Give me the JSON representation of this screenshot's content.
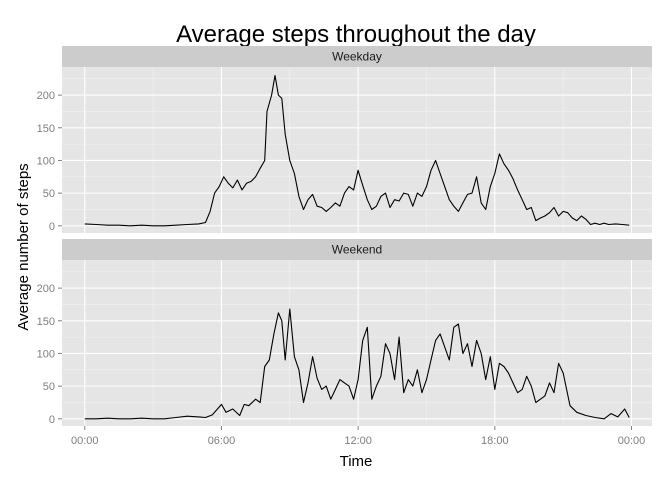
{
  "chart_data": {
    "type": "line",
    "title": "Average steps throughout the day",
    "xlabel": "Time",
    "ylabel": "Average number of steps",
    "x_unit": "hours",
    "xlim": [
      -1,
      24.9
    ],
    "ylim": [
      -11,
      243
    ],
    "x_ticks": [
      {
        "value": 0,
        "label": "00:00"
      },
      {
        "value": 6,
        "label": "06:00"
      },
      {
        "value": 12,
        "label": "12:00"
      },
      {
        "value": 18,
        "label": "18:00"
      },
      {
        "value": 24,
        "label": "00:00"
      }
    ],
    "y_ticks": [
      0,
      50,
      100,
      150,
      200
    ],
    "grid": true,
    "background_color": "#e5e5e5",
    "strip_color": "#cccccc",
    "line_color": "#000000",
    "panels": [
      {
        "label": "Weekday",
        "x": [
          0,
          0.5,
          1,
          1.5,
          2,
          2.5,
          3,
          3.5,
          4,
          4.5,
          5,
          5.3,
          5.5,
          5.7,
          5.9,
          6.1,
          6.3,
          6.5,
          6.7,
          6.9,
          7.1,
          7.3,
          7.5,
          7.7,
          7.9,
          8.0,
          8.2,
          8.35,
          8.5,
          8.65,
          8.8,
          9.0,
          9.2,
          9.4,
          9.6,
          9.8,
          10.0,
          10.2,
          10.4,
          10.6,
          10.8,
          11.0,
          11.2,
          11.4,
          11.6,
          11.8,
          12.0,
          12.2,
          12.4,
          12.6,
          12.8,
          13.0,
          13.2,
          13.4,
          13.6,
          13.8,
          14.0,
          14.2,
          14.4,
          14.6,
          14.8,
          15.0,
          15.2,
          15.4,
          15.6,
          15.8,
          16.0,
          16.2,
          16.4,
          16.6,
          16.8,
          17.0,
          17.2,
          17.4,
          17.6,
          17.8,
          18.0,
          18.2,
          18.4,
          18.6,
          18.8,
          19.0,
          19.2,
          19.4,
          19.6,
          19.8,
          20.0,
          20.2,
          20.4,
          20.6,
          20.8,
          21.0,
          21.2,
          21.4,
          21.6,
          21.8,
          22.0,
          22.2,
          22.4,
          22.6,
          22.8,
          23.0,
          23.3,
          23.6,
          23.9
        ],
        "y": [
          3,
          2,
          1,
          1,
          0,
          1,
          0,
          0,
          1,
          2,
          3,
          5,
          22,
          50,
          60,
          75,
          65,
          58,
          70,
          55,
          65,
          68,
          75,
          88,
          100,
          175,
          200,
          230,
          200,
          195,
          140,
          100,
          80,
          45,
          25,
          40,
          48,
          30,
          28,
          22,
          28,
          35,
          30,
          50,
          60,
          55,
          85,
          62,
          40,
          25,
          30,
          45,
          50,
          28,
          40,
          38,
          50,
          48,
          30,
          50,
          45,
          60,
          85,
          100,
          80,
          60,
          40,
          30,
          22,
          35,
          48,
          50,
          75,
          35,
          25,
          60,
          80,
          110,
          95,
          85,
          72,
          55,
          40,
          25,
          28,
          8,
          12,
          15,
          20,
          28,
          15,
          22,
          20,
          12,
          8,
          15,
          10,
          2,
          4,
          2,
          4,
          2,
          3,
          2,
          1
        ]
      },
      {
        "label": "Weekend",
        "x": [
          0,
          0.5,
          1,
          1.5,
          2,
          2.5,
          3,
          3.5,
          4,
          4.5,
          5,
          5.3,
          5.6,
          6.0,
          6.2,
          6.5,
          6.8,
          7.0,
          7.2,
          7.5,
          7.7,
          7.9,
          8.1,
          8.3,
          8.5,
          8.65,
          8.8,
          9.0,
          9.2,
          9.4,
          9.6,
          9.8,
          10.0,
          10.2,
          10.4,
          10.6,
          10.8,
          11.0,
          11.2,
          11.4,
          11.6,
          11.8,
          12.0,
          12.2,
          12.4,
          12.6,
          12.8,
          13.0,
          13.2,
          13.4,
          13.6,
          13.8,
          14.0,
          14.2,
          14.4,
          14.6,
          14.8,
          15.0,
          15.2,
          15.4,
          15.6,
          15.8,
          16.0,
          16.2,
          16.4,
          16.6,
          16.8,
          17.0,
          17.2,
          17.4,
          17.6,
          17.8,
          18.0,
          18.2,
          18.4,
          18.6,
          18.8,
          19.0,
          19.2,
          19.4,
          19.6,
          19.8,
          20.0,
          20.2,
          20.4,
          20.6,
          20.8,
          21.0,
          21.3,
          21.6,
          22.0,
          22.4,
          22.8,
          23.1,
          23.4,
          23.7,
          23.9
        ],
        "y": [
          0,
          0,
          1,
          0,
          0,
          1,
          0,
          0,
          2,
          4,
          3,
          2,
          6,
          22,
          10,
          15,
          5,
          22,
          20,
          30,
          25,
          80,
          90,
          130,
          162,
          150,
          90,
          168,
          95,
          75,
          25,
          55,
          95,
          62,
          45,
          50,
          30,
          45,
          60,
          55,
          50,
          30,
          60,
          120,
          140,
          30,
          50,
          65,
          115,
          100,
          60,
          125,
          40,
          60,
          50,
          75,
          40,
          60,
          90,
          120,
          130,
          110,
          90,
          140,
          145,
          100,
          115,
          80,
          120,
          100,
          60,
          95,
          45,
          85,
          80,
          70,
          55,
          40,
          45,
          65,
          50,
          25,
          30,
          35,
          55,
          40,
          85,
          70,
          20,
          10,
          5,
          2,
          0,
          8,
          3,
          15,
          2
        ]
      }
    ]
  }
}
